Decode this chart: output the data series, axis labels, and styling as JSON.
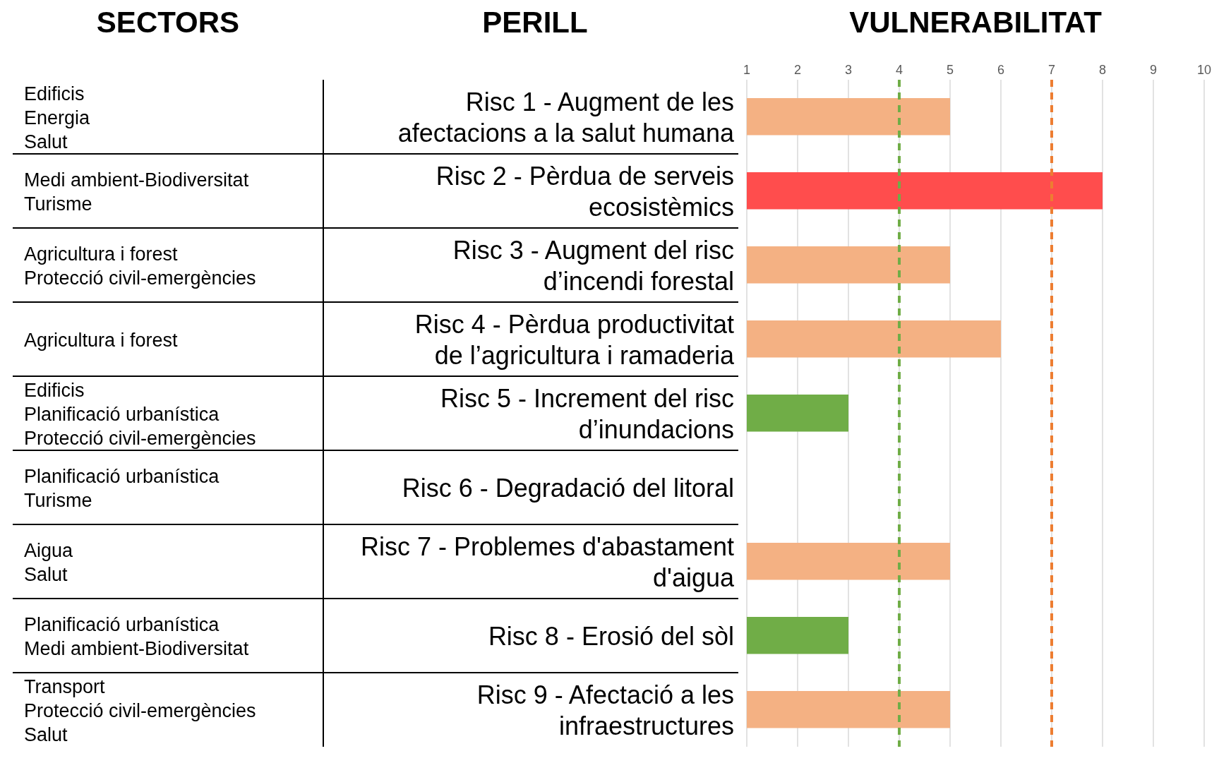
{
  "chart_data": {
    "type": "bar",
    "orientation": "horizontal",
    "xlabel": "VULNERABILITAT",
    "ylabel": "PERILL",
    "categories": [
      "Risc 1 - Augment de les afectacions a la salut humana",
      "Risc 2 - Pèrdua de serveis ecosistèmics",
      "Risc 3 - Augment del risc d’incendi forestal",
      "Risc 4 - Pèrdua productivitat de l’agricultura i ramaderia",
      "Risc 5 - Increment del risc d’inundacions",
      "Risc 6 - Degradació del litoral",
      "Risc 7 - Problemes d'abastament d'aigua",
      "Risc 8 - Erosió del sòl",
      "Risc 9 - Afectació a les infraestructures"
    ],
    "values": [
      5,
      8,
      5,
      6,
      3,
      null,
      5,
      3,
      5
    ],
    "colors": [
      "#f4b183",
      "#ff4d4d",
      "#f4b183",
      "#f4b183",
      "#70ad47",
      "#f4b183",
      "#f4b183",
      "#70ad47",
      "#f4b183"
    ],
    "xlim": [
      1,
      10
    ],
    "xticks": [
      1,
      2,
      3,
      4,
      5,
      6,
      7,
      8,
      9,
      10
    ],
    "grid": "x",
    "ref_lines": [
      {
        "axis": "x",
        "value": 4,
        "color": "#70ad47",
        "line_style": "dashed"
      },
      {
        "axis": "x",
        "value": 7,
        "color": "#ed7d31",
        "line_style": "dashed"
      }
    ],
    "annotations": [
      "SECTORS",
      "Edificis\nEnergia\nSalut",
      "Medi ambient-Biodiversitat\nTurisme",
      "Agricultura i forest\nProtecció civil-emergències",
      "Agricultura i forest",
      "Edificis\nPlanificació urbanística\nProtecció civil-emergències",
      "Planificació urbanística\nTurisme",
      "Aigua\nSalut",
      "Planificació urbanística\nMedi ambient-Biodiversitat",
      "Transport\nProtecció civil-emergències\nSalut"
    ]
  }
}
